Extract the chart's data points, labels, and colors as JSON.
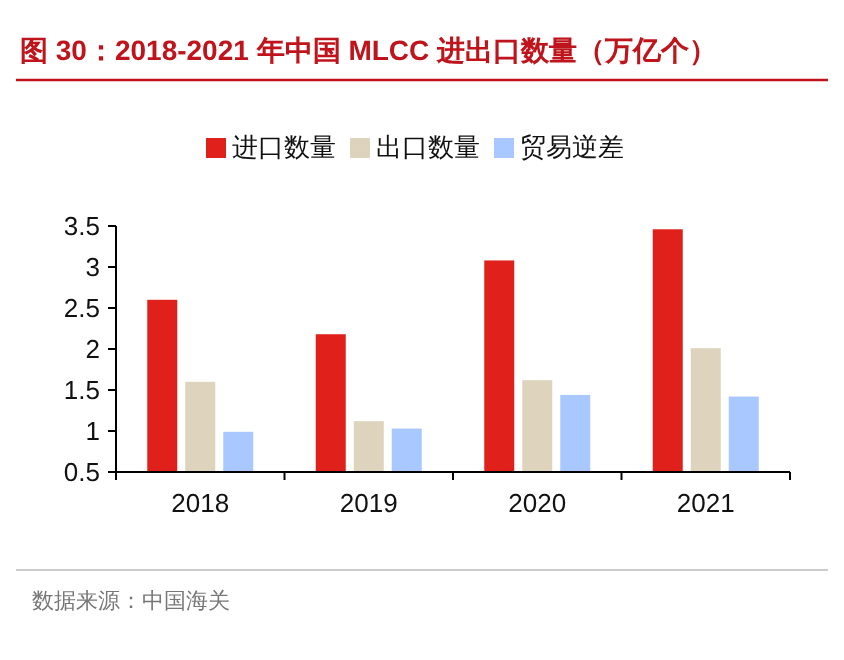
{
  "chart_data": {
    "type": "bar",
    "title": "图 30：2018-2021 年中国 MLCC 进出口数量（万亿个）",
    "categories": [
      "2018",
      "2019",
      "2020",
      "2021"
    ],
    "series": [
      {
        "name": "进口数量",
        "color": "#e0201b",
        "values": [
          2.6,
          2.18,
          3.08,
          3.46
        ]
      },
      {
        "name": "出口数量",
        "color": "#ded4bd",
        "values": [
          1.6,
          1.12,
          1.62,
          2.01
        ]
      },
      {
        "name": "贸易逆差",
        "color": "#a8c8ff",
        "values": [
          0.99,
          1.03,
          1.44,
          1.42
        ]
      }
    ],
    "ylim": [
      0.5,
      3.5
    ],
    "yticks": [
      0.5,
      1,
      1.5,
      2,
      2.5,
      3,
      3.5
    ],
    "legend": "top",
    "grid": false,
    "annotations": [
      "数据来源：中国海关"
    ]
  }
}
